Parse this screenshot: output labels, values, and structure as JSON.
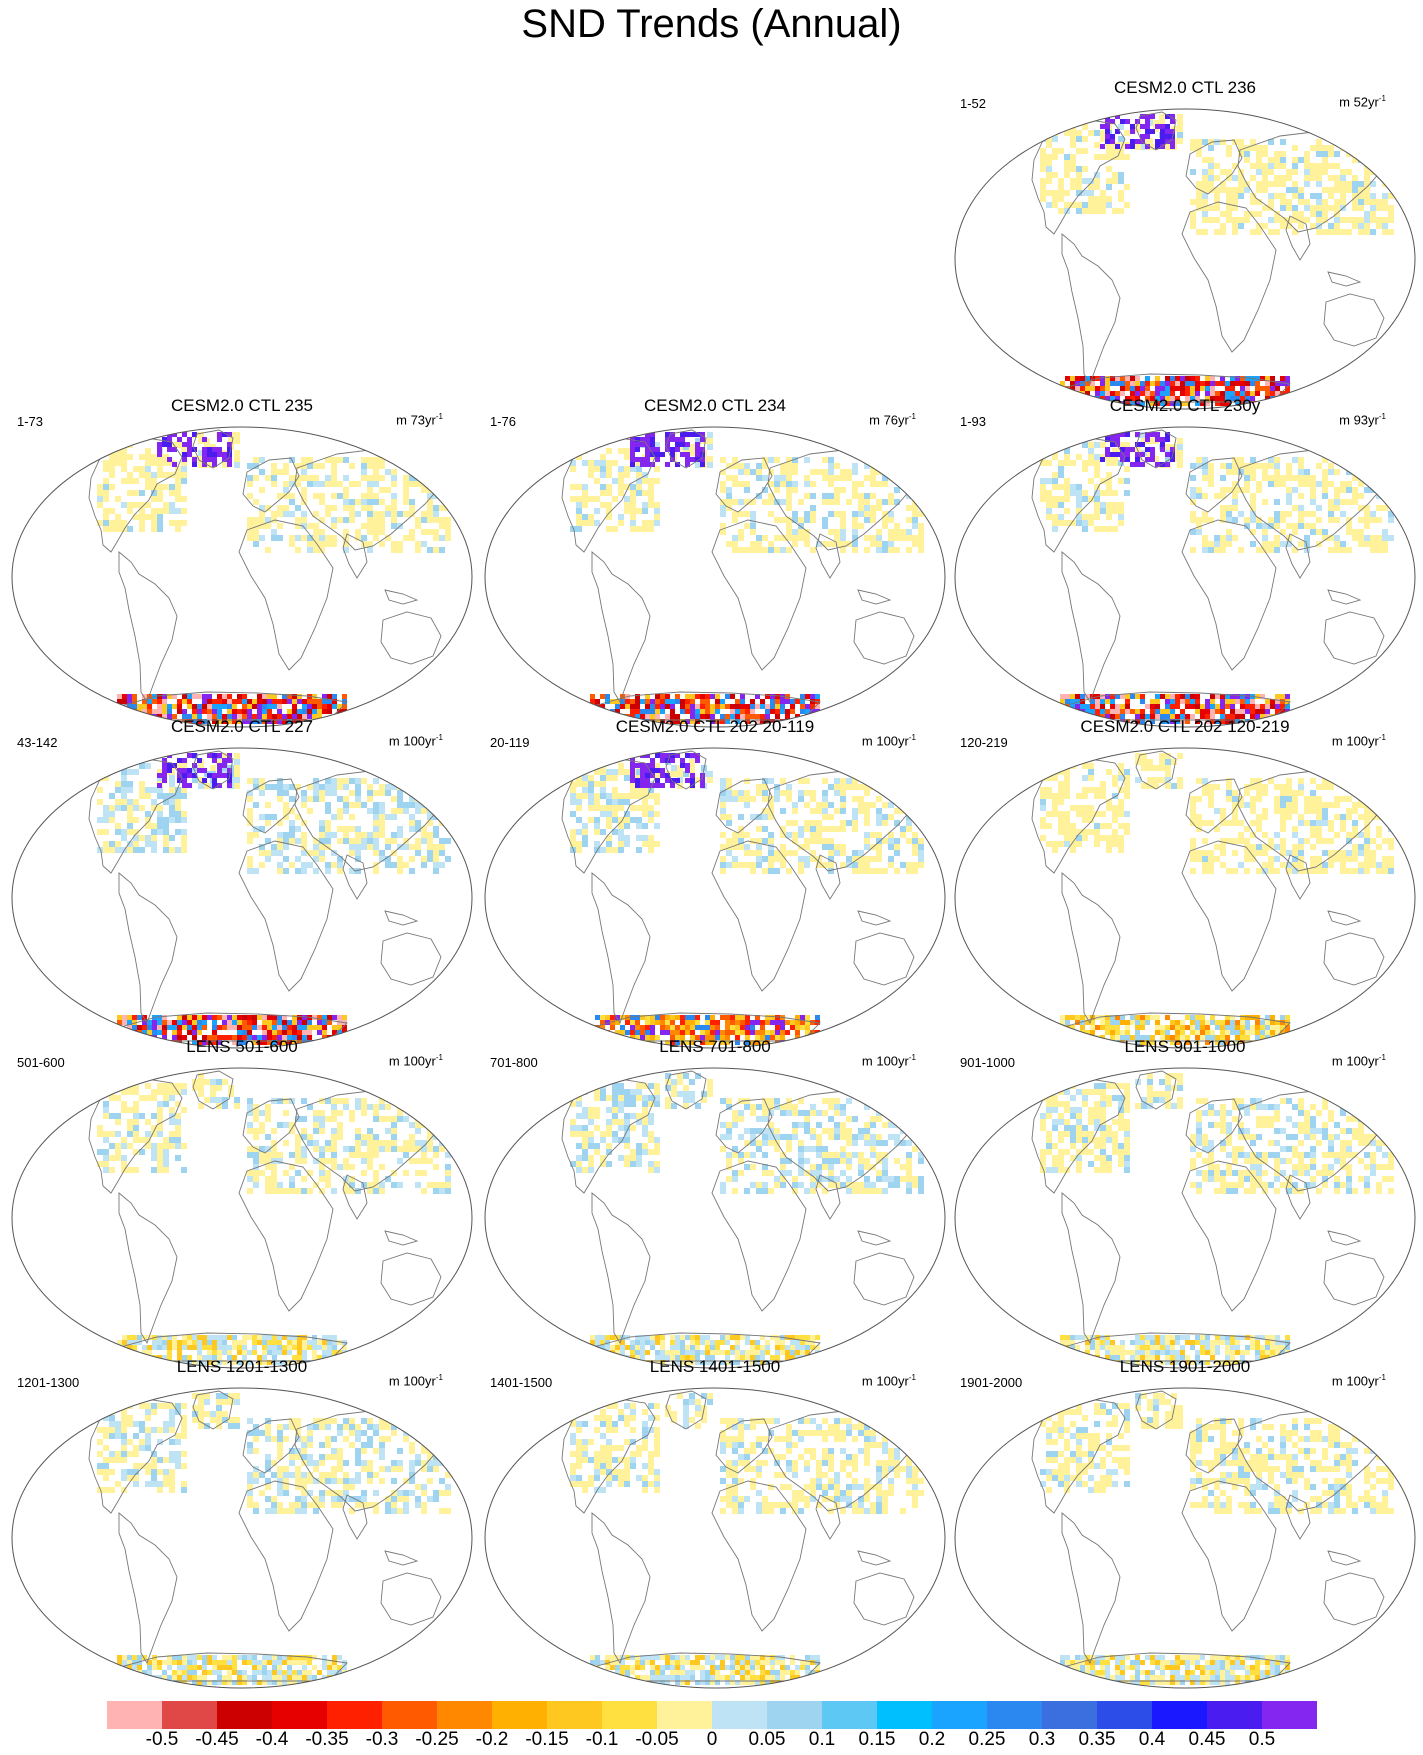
{
  "title": "SND Trends (Annual)",
  "panels": [
    {
      "title": "CESM2.0 CTL 236",
      "period": "1-52",
      "units": "m 52yr",
      "antarctic": "strong",
      "nh_blue": 0.18
    },
    {
      "title": "CESM2.0 CTL 235",
      "period": "1-73",
      "units": "m 73yr",
      "antarctic": "strong",
      "nh_blue": 0.22
    },
    {
      "title": "CESM2.0 CTL 234",
      "period": "1-76",
      "units": "m 76yr",
      "antarctic": "strong",
      "nh_blue": 0.3
    },
    {
      "title": "CESM2.0 CTL 230y",
      "period": "1-93",
      "units": "m 93yr",
      "antarctic": "strong",
      "nh_blue": 0.3
    },
    {
      "title": "CESM2.0 CTL 227",
      "period": "43-142",
      "units": "m 100yr",
      "antarctic": "strong",
      "nh_blue": 0.55
    },
    {
      "title": "CESM2.0 CTL 202 20-119",
      "period": "20-119",
      "units": "m 100yr",
      "antarctic": "orange",
      "nh_blue": 0.4
    },
    {
      "title": "CESM2.0 CTL 202 120-219",
      "period": "120-219",
      "units": "m 100yr",
      "antarctic": "yellow",
      "nh_blue": 0.15
    },
    {
      "title": "LENS 501-600",
      "period": "501-600",
      "units": "m 100yr",
      "antarctic": "weak",
      "nh_blue": 0.35
    },
    {
      "title": "LENS 701-800",
      "period": "701-800",
      "units": "m 100yr",
      "antarctic": "weak",
      "nh_blue": 0.55
    },
    {
      "title": "LENS 901-1000",
      "period": "901-1000",
      "units": "m 100yr",
      "antarctic": "weak",
      "nh_blue": 0.35
    },
    {
      "title": "LENS 1201-1300",
      "period": "1201-1300",
      "units": "m 100yr",
      "antarctic": "weak",
      "nh_blue": 0.45
    },
    {
      "title": "LENS 1401-1500",
      "period": "1401-1500",
      "units": "m 100yr",
      "antarctic": "weak",
      "nh_blue": 0.35
    },
    {
      "title": "LENS 1901-2000",
      "period": "1901-2000",
      "units": "m 100yr",
      "antarctic": "weak",
      "nh_blue": 0.3
    }
  ],
  "units_superscript": "-1",
  "colorbar": {
    "colors": [
      "#ffb3b3",
      "#e04848",
      "#cc0000",
      "#e60000",
      "#ff2000",
      "#ff5a00",
      "#ff8800",
      "#ffb000",
      "#ffc820",
      "#ffe040",
      "#fff29a",
      "#bde3f5",
      "#9fd4f0",
      "#5ec8f4",
      "#00bfff",
      "#1aa3ff",
      "#2a88f0",
      "#3b6fe0",
      "#2c4de8",
      "#1a18ff",
      "#4a1cf0",
      "#8426f0"
    ],
    "labels": [
      "-0.5",
      "-0.45",
      "-0.4",
      "-0.35",
      "-0.3",
      "-0.25",
      "-0.2",
      "-0.15",
      "-0.1",
      "-0.05",
      "0",
      "0.05",
      "0.1",
      "0.15",
      "0.2",
      "0.25",
      "0.3",
      "0.35",
      "0.4",
      "0.45",
      "0.5"
    ]
  }
}
